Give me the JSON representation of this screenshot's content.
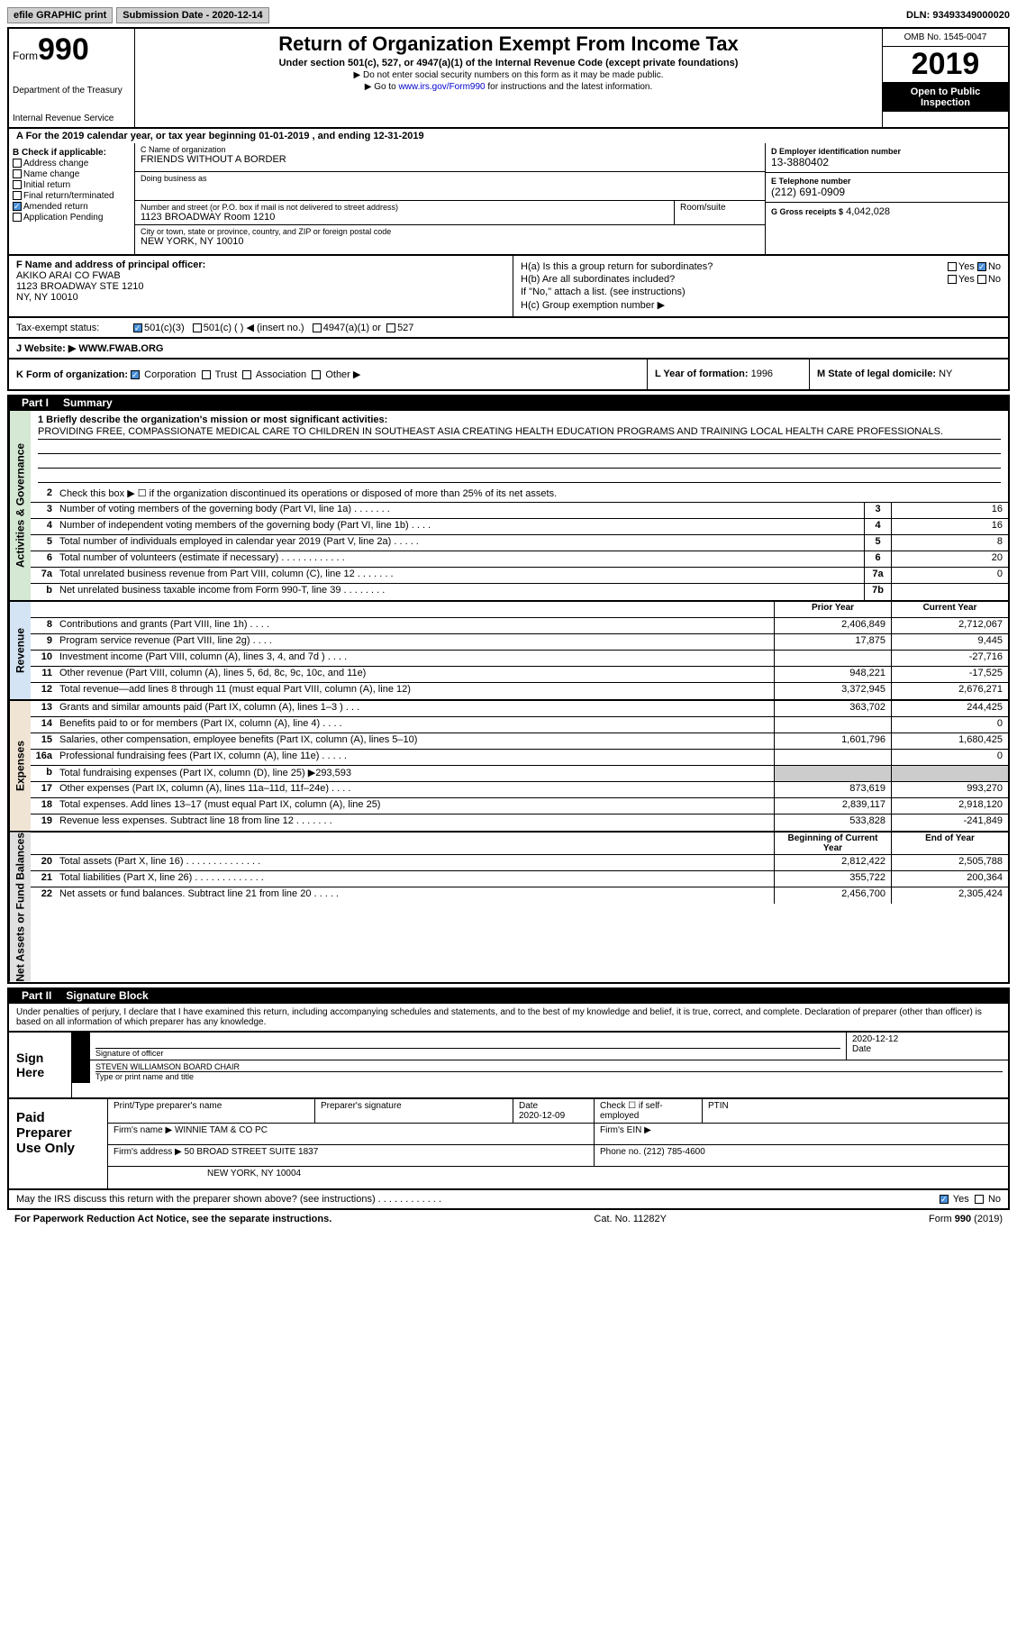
{
  "top": {
    "efile": "efile GRAPHIC print",
    "sub_label": "Submission Date",
    "sub_date": "- 2020-12-14",
    "dln": "DLN: 93493349000020"
  },
  "header": {
    "form_word": "Form",
    "form_num": "990",
    "title": "Return of Organization Exempt From Income Tax",
    "sub": "Under section 501(c), 527, or 4947(a)(1) of the Internal Revenue Code (except private foundations)",
    "note1": "▶ Do not enter social security numbers on this form as it may be made public.",
    "note2_pre": "▶ Go to ",
    "note2_link": "www.irs.gov/Form990",
    "note2_post": " for instructions and the latest information.",
    "dept1": "Department of the Treasury",
    "dept2": "Internal Revenue Service",
    "omb": "OMB No. 1545-0047",
    "year": "2019",
    "open": "Open to Public Inspection"
  },
  "lineA": "A For the 2019 calendar year, or tax year beginning 01-01-2019    , and ending 12-31-2019",
  "boxB": {
    "title": "B Check if applicable:",
    "opts": [
      "Address change",
      "Name change",
      "Initial return",
      "Final return/terminated",
      "Amended return",
      "Application Pending"
    ],
    "checked_idx": 4
  },
  "boxC": {
    "name_label": "C Name of organization",
    "name": "FRIENDS WITHOUT A BORDER",
    "dba_label": "Doing business as",
    "addr_label": "Number and street (or P.O. box if mail is not delivered to street address)",
    "addr": "1123 BROADWAY Room 1210",
    "room_label": "Room/suite",
    "city_label": "City or town, state or province, country, and ZIP or foreign postal code",
    "city": "NEW YORK, NY  10010"
  },
  "boxD": {
    "ein_label": "D Employer identification number",
    "ein": "13-3880402",
    "phone_label": "E Telephone number",
    "phone": "(212) 691-0909",
    "gross_label": "G Gross receipts $",
    "gross": "4,042,028"
  },
  "boxF": {
    "label": "F  Name and address of principal officer:",
    "name": "AKIKO ARAI CO FWAB",
    "addr1": "1123 BROADWAY STE 1210",
    "addr2": "NY, NY  10010"
  },
  "boxH": {
    "a": "H(a)  Is this a group return for subordinates?",
    "b": "H(b)  Are all subordinates included?",
    "note": "If \"No,\" attach a list. (see instructions)",
    "c": "H(c)  Group exemption number ▶",
    "yes": "Yes",
    "no": "No"
  },
  "taxI": {
    "label": "Tax-exempt status:",
    "opts": [
      "501(c)(3)",
      "501(c) (   ) ◀ (insert no.)",
      "4947(a)(1) or",
      "527"
    ]
  },
  "website": {
    "label": "J   Website: ▶",
    "val": "WWW.FWAB.ORG"
  },
  "k": {
    "label": "K Form of organization:",
    "opts": [
      "Corporation",
      "Trust",
      "Association",
      "Other ▶"
    ]
  },
  "l": {
    "label": "L Year of formation:",
    "val": "1996"
  },
  "m": {
    "label": "M State of legal domicile:",
    "val": "NY"
  },
  "part1": {
    "hdr": "Part I",
    "title": "Summary",
    "q1": "1  Briefly describe the organization's mission or most significant activities:",
    "mission": "PROVIDING FREE, COMPASSIONATE MEDICAL CARE TO CHILDREN IN SOUTHEAST ASIA CREATING HEALTH EDUCATION PROGRAMS AND TRAINING LOCAL HEALTH CARE PROFESSIONALS.",
    "q2": "Check this box ▶ ☐  if the organization discontinued its operations or disposed of more than 25% of its net assets.",
    "side_act": "Activities & Governance",
    "side_rev": "Revenue",
    "side_exp": "Expenses",
    "side_net": "Net Assets or Fund Balances",
    "prior_hdr": "Prior Year",
    "curr_hdr": "Current Year",
    "begin_hdr": "Beginning of Current Year",
    "end_hdr": "End of Year",
    "rows_gov": [
      {
        "n": "3",
        "t": "Number of voting members of the governing body (Part VI, line 1a)   .    .    .    .    .    .    .",
        "c": "3",
        "v": "16"
      },
      {
        "n": "4",
        "t": "Number of independent voting members of the governing body (Part VI, line 1b)   .    .    .    .",
        "c": "4",
        "v": "16"
      },
      {
        "n": "5",
        "t": "Total number of individuals employed in calendar year 2019 (Part V, line 2a)   .    .    .    .    .",
        "c": "5",
        "v": "8"
      },
      {
        "n": "6",
        "t": "Total number of volunteers (estimate if necessary)    .    .    .    .    .    .    .    .    .    .    .    .",
        "c": "6",
        "v": "20"
      },
      {
        "n": "7a",
        "t": "Total unrelated business revenue from Part VIII, column (C), line 12   .    .    .    .    .    .    .",
        "c": "7a",
        "v": "0"
      },
      {
        "n": "b",
        "t": "Net unrelated business taxable income from Form 990-T, line 39   .    .    .    .    .    .    .    .",
        "c": "7b",
        "v": ""
      }
    ],
    "rows_rev": [
      {
        "n": "8",
        "t": "Contributions and grants (Part VIII, line 1h)   .    .    .    .",
        "p": "2,406,849",
        "c": "2,712,067"
      },
      {
        "n": "9",
        "t": "Program service revenue (Part VIII, line 2g)   .    .    .    .",
        "p": "17,875",
        "c": "9,445"
      },
      {
        "n": "10",
        "t": "Investment income (Part VIII, column (A), lines 3, 4, and 7d )    .    .    .    .",
        "p": "",
        "c": "-27,716"
      },
      {
        "n": "11",
        "t": "Other revenue (Part VIII, column (A), lines 5, 6d, 8c, 9c, 10c, and 11e)",
        "p": "948,221",
        "c": "-17,525"
      },
      {
        "n": "12",
        "t": "Total revenue—add lines 8 through 11 (must equal Part VIII, column (A), line 12)",
        "p": "3,372,945",
        "c": "2,676,271"
      }
    ],
    "rows_exp": [
      {
        "n": "13",
        "t": "Grants and similar amounts paid (Part IX, column (A), lines 1–3 )   .    .    .",
        "p": "363,702",
        "c": "244,425"
      },
      {
        "n": "14",
        "t": "Benefits paid to or for members (Part IX, column (A), line 4)   .    .    .    .",
        "p": "",
        "c": "0"
      },
      {
        "n": "15",
        "t": "Salaries, other compensation, employee benefits (Part IX, column (A), lines 5–10)",
        "p": "1,601,796",
        "c": "1,680,425"
      },
      {
        "n": "16a",
        "t": "Professional fundraising fees (Part IX, column (A), line 11e)   .    .    .    .    .",
        "p": "",
        "c": "0"
      },
      {
        "n": "b",
        "t": "Total fundraising expenses (Part IX, column (D), line 25) ▶293,593",
        "p": "shaded",
        "c": "shaded"
      },
      {
        "n": "17",
        "t": "Other expenses (Part IX, column (A), lines 11a–11d, 11f–24e)   .    .    .    .",
        "p": "873,619",
        "c": "993,270"
      },
      {
        "n": "18",
        "t": "Total expenses. Add lines 13–17 (must equal Part IX, column (A), line 25)",
        "p": "2,839,117",
        "c": "2,918,120"
      },
      {
        "n": "19",
        "t": "Revenue less expenses. Subtract line 18 from line 12   .    .    .    .    .    .    .",
        "p": "533,828",
        "c": "-241,849"
      }
    ],
    "rows_net": [
      {
        "n": "20",
        "t": "Total assets (Part X, line 16)   .    .    .    .    .    .    .    .    .    .    .    .    .    .",
        "p": "2,812,422",
        "c": "2,505,788"
      },
      {
        "n": "21",
        "t": "Total liabilities (Part X, line 26)   .    .    .    .    .    .    .    .    .    .    .    .    .",
        "p": "355,722",
        "c": "200,364"
      },
      {
        "n": "22",
        "t": "Net assets or fund balances. Subtract line 21 from line 20   .    .    .    .    .",
        "p": "2,456,700",
        "c": "2,305,424"
      }
    ]
  },
  "part2": {
    "hdr": "Part II",
    "title": "Signature Block",
    "text": "Under penalties of perjury, I declare that I have examined this return, including accompanying schedules and statements, and to the best of my knowledge and belief, it is true, correct, and complete. Declaration of preparer (other than officer) is based on all information of which preparer has any knowledge.",
    "sign_here": "Sign Here",
    "sig_officer": "Signature of officer",
    "sig_date": "2020-12-12",
    "date_lbl": "Date",
    "officer": "STEVEN WILLIAMSON  BOARD CHAIR",
    "type_lbl": "Type or print name and title",
    "paid": "Paid Preparer Use Only",
    "prep_name_lbl": "Print/Type preparer's name",
    "prep_sig_lbl": "Preparer's signature",
    "prep_date_lbl": "Date",
    "prep_date": "2020-12-09",
    "prep_chk": "Check ☐ if self-employed",
    "ptin_lbl": "PTIN",
    "firm_name_lbl": "Firm's name    ▶",
    "firm_name": "WINNIE TAM & CO PC",
    "firm_ein_lbl": "Firm's EIN ▶",
    "firm_addr_lbl": "Firm's address ▶",
    "firm_addr1": "50 BROAD STREET SUITE 1837",
    "firm_addr2": "NEW YORK, NY  10004",
    "firm_phone_lbl": "Phone no.",
    "firm_phone": "(212) 785-4600",
    "irs_q": "May the IRS discuss this return with the preparer shown above? (see instructions)    .    .    .    .    .    .    .    .    .    .    .    .",
    "irs_yes": "Yes",
    "irs_no": "No"
  },
  "footer": {
    "left": "For Paperwork Reduction Act Notice, see the separate instructions.",
    "mid": "Cat. No. 11282Y",
    "right": "Form 990 (2019)"
  }
}
